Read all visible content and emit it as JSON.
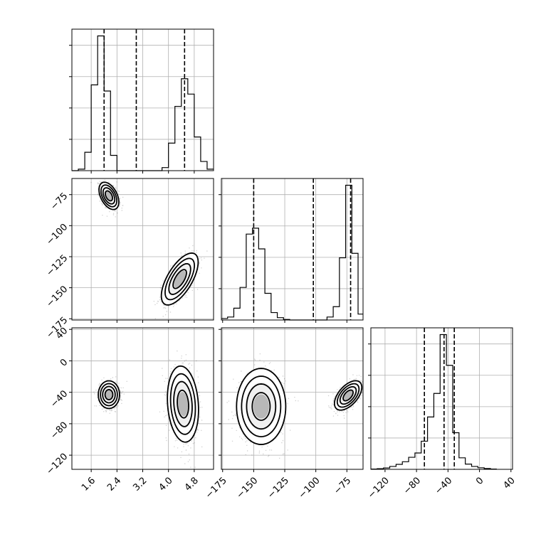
{
  "chart_data": {
    "type": "corner",
    "params": [
      "",
      "",
      ""
    ],
    "grid": true,
    "colors": {
      "line": "#000000",
      "scatter": "#000000",
      "grid": "#b0b0b0"
    },
    "axes_ranges": [
      [
        1.0,
        5.4
      ],
      [
        -176,
        -62
      ],
      [
        -138,
        42
      ]
    ],
    "ticks": [
      [
        "1.6",
        "2.4",
        "3.2",
        "4.0",
        "4.8"
      ],
      [
        "-175",
        "-150",
        "-125",
        "-100",
        "-75"
      ],
      [
        "-120",
        "-80",
        "-40",
        "0",
        "40"
      ]
    ],
    "histograms": [
      {
        "param": 0,
        "bins": [
          1.0,
          1.2,
          1.4,
          1.6,
          1.8,
          2.0,
          2.2,
          2.4,
          2.6,
          2.8,
          3.0,
          3.2,
          3.4,
          3.6,
          3.8,
          4.0,
          4.2,
          4.4,
          4.6,
          4.8,
          5.0,
          5.2,
          5.4
        ],
        "counts": [
          0,
          5,
          60,
          280,
          440,
          260,
          50,
          0,
          0,
          0,
          0,
          0,
          0,
          0,
          10,
          90,
          210,
          300,
          250,
          110,
          30,
          5
        ],
        "quantiles": [
          2.0,
          3.0,
          4.5
        ]
      },
      {
        "param": 1,
        "bins": [
          -176,
          -171,
          -166,
          -161,
          -156,
          -151,
          -146,
          -141,
          -136,
          -131,
          -126,
          -121,
          -116,
          -111,
          -106,
          -101,
          -96,
          -91,
          -86,
          -81,
          -76,
          -71,
          -66,
          -62
        ],
        "counts": [
          5,
          10,
          40,
          110,
          290,
          310,
          240,
          90,
          25,
          8,
          2,
          0,
          0,
          0,
          0,
          0,
          0,
          10,
          45,
          210,
          455,
          225,
          20
        ],
        "quantiles": [
          -150,
          -102,
          -72
        ]
      },
      {
        "param": 2,
        "bins": [
          -138,
          -130,
          -122,
          -114,
          -106,
          -98,
          -90,
          -82,
          -74,
          -66,
          -58,
          -50,
          -42,
          -34,
          -26,
          -18,
          -10,
          -2,
          6,
          14,
          22
        ],
        "counts": [
          2,
          5,
          10,
          22,
          38,
          58,
          92,
          125,
          215,
          400,
          580,
          1030,
          795,
          280,
          88,
          40,
          22,
          12,
          6,
          2
        ],
        "quantiles": [
          -70,
          -45,
          -32
        ]
      }
    ],
    "scatter_2d": [
      {
        "x_param": 0,
        "y_param": 1,
        "modes": [
          {
            "x_center": 2.15,
            "y_center": -76,
            "x_sigma": 0.14,
            "y_sigma": 5.0,
            "correlation": -0.45
          },
          {
            "x_center": 4.35,
            "y_center": -143,
            "x_sigma": 0.26,
            "y_sigma": 9.5,
            "correlation": 0.65
          }
        ]
      },
      {
        "x_param": 0,
        "y_param": 2,
        "modes": [
          {
            "x_center": 2.15,
            "y_center": -43,
            "x_sigma": 0.15,
            "y_sigma": 8.0,
            "correlation": 0.0
          },
          {
            "x_center": 4.45,
            "y_center": -55,
            "x_sigma": 0.22,
            "y_sigma": 22.0,
            "correlation": -0.15
          }
        ]
      },
      {
        "x_param": 1,
        "y_param": 2,
        "modes": [
          {
            "x_center": -144,
            "y_center": -58,
            "x_sigma": 9.0,
            "y_sigma": 22.0,
            "correlation": 0.0
          },
          {
            "x_center": -74,
            "y_center": -44,
            "x_sigma": 5.0,
            "y_sigma": 8.5,
            "correlation": 0.55
          }
        ]
      }
    ]
  }
}
